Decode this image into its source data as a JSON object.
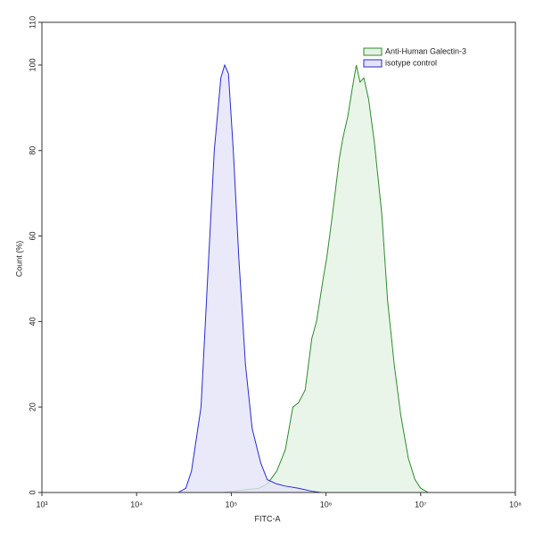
{
  "chart_data": {
    "type": "area",
    "xlabel": "FITC-A",
    "ylabel": "Count (%)",
    "xscale": "log",
    "xlim": [
      1000,
      100000000
    ],
    "ylim": [
      0,
      110
    ],
    "xticks": [
      {
        "value": 1000,
        "label": "10³"
      },
      {
        "value": 10000,
        "label": "10⁴"
      },
      {
        "value": 100000,
        "label": "10⁵"
      },
      {
        "value": 1000000,
        "label": "10⁶"
      },
      {
        "value": 10000000,
        "label": "10⁷"
      },
      {
        "value": 100000000,
        "label": "10⁸"
      }
    ],
    "yticks": [
      0,
      20,
      40,
      60,
      80,
      100,
      110
    ],
    "legend": "upper right",
    "series": [
      {
        "name": "Anti-Human Galectin-3",
        "color": "#2e8b2e",
        "fill": "#e3f3e3",
        "x": [
          81300,
          195000,
          240000,
          302000,
          372000,
          447000,
          513000,
          603000,
          708000,
          794000,
          933000,
          1020000,
          1170000,
          1380000,
          1510000,
          1700000,
          1910000,
          2090000,
          2290000,
          2510000,
          2820000,
          3240000,
          3890000,
          4470000,
          5250000,
          6170000,
          7410000,
          8710000,
          10000000,
          12000000
        ],
        "values": [
          0,
          1,
          2,
          5,
          10,
          20,
          21,
          24,
          36,
          40,
          50,
          55,
          65,
          78,
          83,
          88,
          95,
          100,
          96,
          97,
          92,
          82,
          65,
          45,
          30,
          18,
          8,
          3,
          1,
          0
        ]
      },
      {
        "name": "isotype control",
        "color": "#2a2ad0",
        "fill": "#e4e4f8",
        "x": [
          27500,
          33100,
          38000,
          47900,
          56200,
          66100,
          77600,
          85100,
          93300,
          105000,
          120000,
          141000,
          166000,
          204000,
          240000,
          302000,
          372000,
          513000,
          708000,
          891000
        ],
        "values": [
          0,
          1,
          5,
          20,
          50,
          80,
          97,
          100,
          98,
          80,
          55,
          30,
          15,
          7,
          3,
          2,
          1.5,
          1,
          0.3,
          0
        ]
      }
    ]
  }
}
